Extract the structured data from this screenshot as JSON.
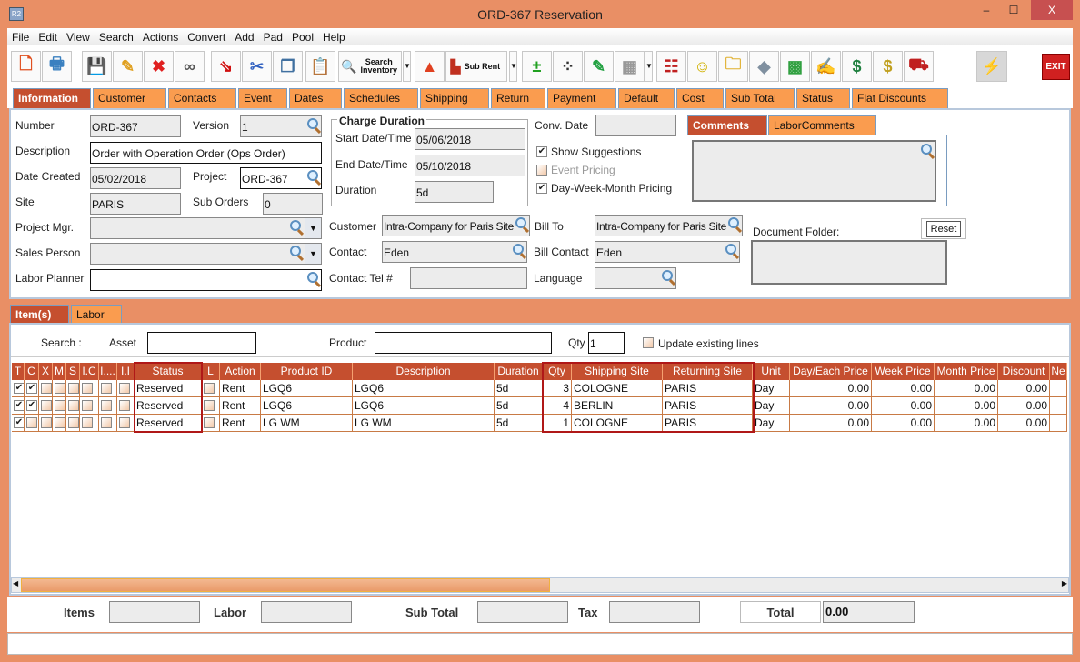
{
  "window": {
    "title": "ORD-367 Reservation",
    "app_icon": "R2",
    "minimize": "–",
    "maximize": "☐",
    "close": "X"
  },
  "menu": [
    "File",
    "Edit",
    "View",
    "Search",
    "Actions",
    "Convert",
    "Add",
    "Pad",
    "Pool",
    "Help"
  ],
  "toolbar": [
    {
      "icon": "new-document-icon",
      "glyph": "🗋",
      "color": "#e05020"
    },
    {
      "icon": "print-icon",
      "glyph": "🖶",
      "color": "#3a80c0"
    },
    {
      "icon": "save-icon",
      "glyph": "💾",
      "color": "#2a70c0"
    },
    {
      "icon": "edit-pencil-icon",
      "glyph": "✎",
      "color": "#e0a020"
    },
    {
      "icon": "delete-icon",
      "glyph": "✖",
      "color": "#e02020"
    },
    {
      "icon": "binoculars-icon",
      "glyph": "∞",
      "color": "#555"
    },
    {
      "icon": "copy-to-icon",
      "glyph": "⇘",
      "color": "#d01010"
    },
    {
      "icon": "cut-icon",
      "glyph": "✂",
      "color": "#3060c0"
    },
    {
      "icon": "copy-icon",
      "glyph": "❐",
      "color": "#4070a0"
    },
    {
      "icon": "paste-icon",
      "glyph": "📋",
      "color": "#d08020"
    },
    {
      "icon": "search-inventory-icon",
      "label": "Search Inventory",
      "glyph": "🔍",
      "color": "#c89020"
    },
    {
      "icon": "shapes-icon",
      "glyph": "▲",
      "color": "#e04020"
    },
    {
      "icon": "sub-rent-icon",
      "label": "Sub Rent",
      "glyph": "▙",
      "color": "#c03020"
    },
    {
      "icon": "add-remove-icon",
      "glyph": "±",
      "color": "#20a020"
    },
    {
      "icon": "help-balls-icon",
      "glyph": "⁘",
      "color": "#333"
    },
    {
      "icon": "notepad-icon",
      "glyph": "✎",
      "color": "#20a040"
    },
    {
      "icon": "calendar-icon",
      "glyph": "▦",
      "color": "#999"
    },
    {
      "icon": "org-chart-icon",
      "glyph": "☷",
      "color": "#c02020"
    },
    {
      "icon": "smiley-icon",
      "glyph": "☺",
      "color": "#d0b000"
    },
    {
      "icon": "folder-clock-icon",
      "glyph": "🗀",
      "color": "#e0b030"
    },
    {
      "icon": "eraser-icon",
      "glyph": "◆",
      "color": "#8090a0"
    },
    {
      "icon": "stacks-icon",
      "glyph": "▩",
      "color": "#30a040"
    },
    {
      "icon": "document-edit-icon",
      "glyph": "✍",
      "color": "#3070c0"
    },
    {
      "icon": "money-forward-icon",
      "glyph": "$",
      "color": "#208040"
    },
    {
      "icon": "money-note-icon",
      "glyph": "$",
      "color": "#c0a020"
    },
    {
      "icon": "truck-icon",
      "glyph": "⛟",
      "color": "#c02020"
    },
    {
      "icon": "lightning-icon",
      "glyph": "⚡",
      "color": "#e0b020"
    },
    {
      "icon": "exit-icon",
      "glyph": "EXIT",
      "color": "#fff"
    }
  ],
  "tabs": [
    "Information",
    "Customer",
    "Contacts",
    "Event",
    "Dates",
    "Schedules",
    "Shipping",
    "Return",
    "Payment",
    "Default",
    "Cost",
    "Sub Total",
    "Status",
    "Flat Discounts"
  ],
  "info": {
    "number_label": "Number",
    "number": "ORD-367",
    "version_label": "Version",
    "version": "1",
    "description_label": "Description",
    "description": "Order with Operation Order (Ops Order)",
    "date_created_label": "Date Created",
    "date_created": "05/02/2018",
    "project_label": "Project",
    "project": "ORD-367",
    "site_label": "Site",
    "site": "PARIS",
    "sub_orders_label": "Sub Orders",
    "sub_orders": "0",
    "project_mgr_label": "Project Mgr.",
    "project_mgr": "",
    "sales_person_label": "Sales Person",
    "sales_person": "",
    "labor_planner_label": "Labor Planner",
    "labor_planner": "",
    "charge_duration_title": "Charge Duration",
    "start_label": "Start Date/Time",
    "start": "05/06/2018",
    "end_label": "End Date/Time",
    "end": "05/10/2018",
    "duration_label": "Duration",
    "duration": "5d",
    "conv_date_label": "Conv. Date",
    "conv_date": "",
    "show_suggestions": "Show Suggestions",
    "show_suggestions_checked": true,
    "event_pricing": "Event Pricing",
    "event_pricing_checked": false,
    "dwm_pricing": "Day-Week-Month Pricing",
    "dwm_pricing_checked": true,
    "customer_label": "Customer",
    "customer": "Intra-Company for Paris Site",
    "contact_label": "Contact",
    "contact": "Eden",
    "contact_tel_label": "Contact Tel #",
    "contact_tel": "",
    "bill_to_label": "Bill To",
    "bill_to": "Intra-Company for Paris Site",
    "bill_contact_label": "Bill Contact",
    "bill_contact": "Eden",
    "language_label": "Language",
    "language": "",
    "comments_tabs": [
      "Comments",
      "LaborComments"
    ],
    "document_folder_label": "Document Folder:",
    "reset_label": "Reset"
  },
  "lower_tabs": [
    "Item(s)",
    "Labor"
  ],
  "search": {
    "label": "Search :",
    "asset_label": "Asset",
    "asset": "",
    "product_label": "Product",
    "product": "",
    "qty_label": "Qty",
    "qty": "1",
    "update_label": "Update existing lines",
    "update_checked": false
  },
  "table": {
    "columns": [
      "T",
      "C",
      "X",
      "M",
      "S",
      "I.C",
      "I....",
      "I.I",
      "Status",
      "L",
      "Action",
      "Product ID",
      "Description",
      "Duration",
      "Qty",
      "Shipping Site",
      "Returning Site",
      "Unit",
      "Day/Each Price",
      "Week Price",
      "Month Price",
      "Discount",
      "Ne"
    ],
    "rows": [
      {
        "T": true,
        "C": true,
        "X": false,
        "M": false,
        "S": false,
        "IC": false,
        "I4": false,
        "II": false,
        "status": "Reserved",
        "L": false,
        "action": "Rent",
        "product_id": "LGQ6",
        "description": "LGQ6",
        "duration": "5d",
        "qty": "3",
        "shipping_site": "COLOGNE",
        "returning_site": "PARIS",
        "unit": "Day",
        "day_price": "0.00",
        "week_price": "0.00",
        "month_price": "0.00",
        "discount": "0.00"
      },
      {
        "T": true,
        "C": true,
        "X": false,
        "M": false,
        "S": false,
        "IC": false,
        "I4": false,
        "II": false,
        "status": "Reserved",
        "L": false,
        "action": "Rent",
        "product_id": "LGQ6",
        "description": "LGQ6",
        "duration": "5d",
        "qty": "4",
        "shipping_site": "BERLIN",
        "returning_site": "PARIS",
        "unit": "Day",
        "day_price": "0.00",
        "week_price": "0.00",
        "month_price": "0.00",
        "discount": "0.00"
      },
      {
        "T": true,
        "C": false,
        "X": false,
        "M": false,
        "S": false,
        "IC": false,
        "I4": false,
        "II": false,
        "status": "Reserved",
        "L": false,
        "action": "Rent",
        "product_id": "LG WM",
        "description": "LG WM",
        "duration": "5d",
        "qty": "1",
        "shipping_site": "COLOGNE",
        "returning_site": "PARIS",
        "unit": "Day",
        "day_price": "0.00",
        "week_price": "0.00",
        "month_price": "0.00",
        "discount": "0.00"
      }
    ]
  },
  "totals": {
    "items_label": "Items",
    "items": "",
    "labor_label": "Labor",
    "labor": "",
    "sub_total_label": "Sub Total",
    "sub_total": "",
    "tax_label": "Tax",
    "tax": "",
    "total_label": "Total",
    "total": "0.00"
  },
  "colors": {
    "window": "#e98f65",
    "tab": "#fa9c4f",
    "active_tab": "#c54f2f",
    "highlight": "#b01818"
  }
}
